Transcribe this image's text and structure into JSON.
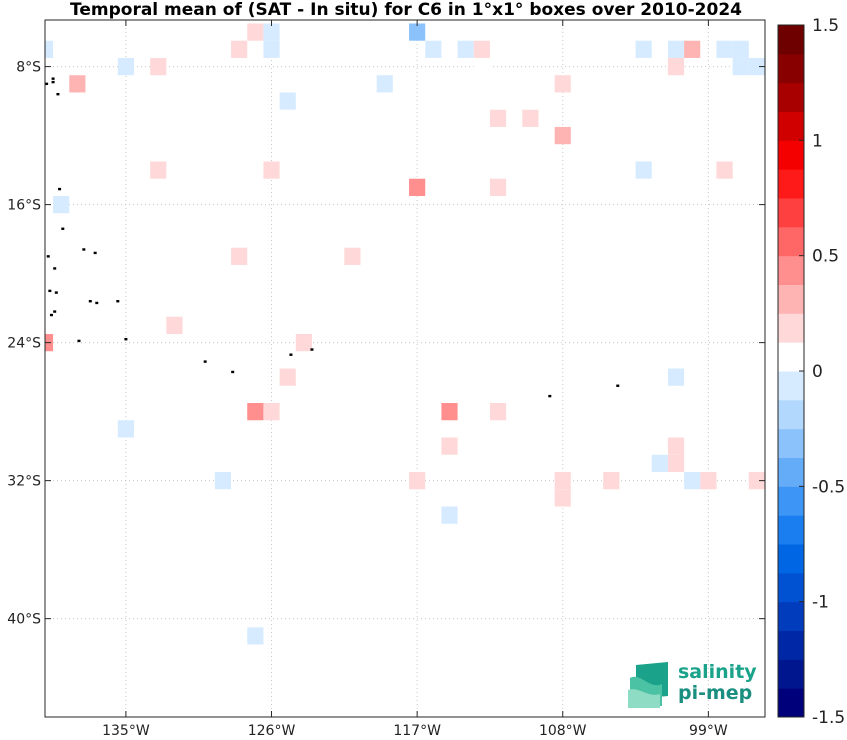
{
  "chart_data": {
    "type": "heatmap",
    "title": "Temporal mean of (SAT - In situ) for C6 in 1°x1° boxes over 2010-2024",
    "xlim": [
      -140,
      -95.5
    ],
    "ylim": [
      -45.7,
      -5.3
    ],
    "x_ticks": [
      {
        "value": -135,
        "label": "135°W"
      },
      {
        "value": -126,
        "label": "126°W"
      },
      {
        "value": -117,
        "label": "117°W"
      },
      {
        "value": -108,
        "label": "108°W"
      },
      {
        "value": -99,
        "label": "99°W"
      }
    ],
    "y_ticks": [
      {
        "value": -8,
        "label": "8°S"
      },
      {
        "value": -16,
        "label": "16°S"
      },
      {
        "value": -24,
        "label": "24°S"
      },
      {
        "value": -32,
        "label": "32°S"
      },
      {
        "value": -40,
        "label": "40°S"
      }
    ],
    "grid": true,
    "colorbar": {
      "range": [
        -1.5,
        1.5
      ],
      "n_levels": 20,
      "ticks": [
        {
          "value": 1.5,
          "label": "1.5"
        },
        {
          "value": 1,
          "label": "1"
        },
        {
          "value": 0.5,
          "label": "0.5"
        },
        {
          "value": 0,
          "label": "0"
        },
        {
          "value": -0.5,
          "label": "-0.5"
        },
        {
          "value": -1,
          "label": "-1"
        },
        {
          "value": -1.5,
          "label": "-1.5"
        }
      ],
      "colors": [
        "#00007a",
        "#00168f",
        "#0028a6",
        "#003cbc",
        "#0052d2",
        "#0066e3",
        "#1a7ef0",
        "#3d95f5",
        "#64abf8",
        "#8cc2fb",
        "#b3d8fd",
        "#d6ebff",
        "#ffffff",
        "#ffd9d9",
        "#ffb4b4",
        "#ff8e8e",
        "#ff6666",
        "#ff4040",
        "#ff1a1a",
        "#f50000",
        "#d00000",
        "#a80000",
        "#880000",
        "#6e0000"
      ]
    },
    "cells": [
      {
        "lon": -140,
        "lat": -7,
        "v": -0.12
      },
      {
        "lon": -135,
        "lat": -8,
        "v": -0.12
      },
      {
        "lon": -138,
        "lat": -9,
        "v": 0.32
      },
      {
        "lon": -133,
        "lat": -8,
        "v": 0.15
      },
      {
        "lon": -128,
        "lat": -7,
        "v": 0.15
      },
      {
        "lon": -127,
        "lat": -6,
        "v": 0.2
      },
      {
        "lon": -126,
        "lat": -6,
        "v": -0.12
      },
      {
        "lon": -126,
        "lat": -7,
        "v": -0.12
      },
      {
        "lon": -125,
        "lat": -10,
        "v": -0.12
      },
      {
        "lon": -119,
        "lat": -9,
        "v": -0.12
      },
      {
        "lon": -117,
        "lat": -6,
        "v": -0.3
      },
      {
        "lon": -116,
        "lat": -7,
        "v": -0.12
      },
      {
        "lon": -114,
        "lat": -7,
        "v": -0.12
      },
      {
        "lon": -113,
        "lat": -7,
        "v": 0.15
      },
      {
        "lon": -114,
        "lat": -9,
        "v": 0.12
      },
      {
        "lon": -113,
        "lat": -9,
        "v": 0.12
      },
      {
        "lon": -113,
        "lat": -8,
        "v": 0.12
      },
      {
        "lon": -112,
        "lat": -11,
        "v": 0.2
      },
      {
        "lon": -110,
        "lat": -11,
        "v": 0.2
      },
      {
        "lon": -108,
        "lat": -9,
        "v": 0.15
      },
      {
        "lon": -108,
        "lat": -12,
        "v": 0.32
      },
      {
        "lon": -103,
        "lat": -7,
        "v": -0.12
      },
      {
        "lon": -101,
        "lat": -7,
        "v": -0.12
      },
      {
        "lon": -101,
        "lat": -8,
        "v": 0.15
      },
      {
        "lon": -100,
        "lat": -7,
        "v": 0.3
      },
      {
        "lon": -98,
        "lat": -7,
        "v": -0.12
      },
      {
        "lon": -97,
        "lat": -7,
        "v": -0.12
      },
      {
        "lon": -97,
        "lat": -8,
        "v": -0.12
      },
      {
        "lon": -96,
        "lat": -8,
        "v": -0.12
      },
      {
        "lon": -133,
        "lat": -14,
        "v": 0.15
      },
      {
        "lon": -126,
        "lat": -14,
        "v": 0.15
      },
      {
        "lon": -117,
        "lat": -15,
        "v": 0.38
      },
      {
        "lon": -112,
        "lat": -15,
        "v": 0.15
      },
      {
        "lon": -103,
        "lat": -14,
        "v": -0.12
      },
      {
        "lon": -98,
        "lat": -14,
        "v": 0.15
      },
      {
        "lon": -139,
        "lat": -16,
        "v": -0.12
      },
      {
        "lon": -128,
        "lat": -19,
        "v": 0.15
      },
      {
        "lon": -121,
        "lat": -19,
        "v": 0.2
      },
      {
        "lon": -140,
        "lat": -24,
        "v": 0.45
      },
      {
        "lon": -132,
        "lat": -23,
        "v": 0.15
      },
      {
        "lon": -124,
        "lat": -24,
        "v": 0.15
      },
      {
        "lon": -127,
        "lat": -28,
        "v": 0.38
      },
      {
        "lon": -126,
        "lat": -28,
        "v": 0.15
      },
      {
        "lon": -125,
        "lat": -26,
        "v": 0.2
      },
      {
        "lon": -135,
        "lat": -29,
        "v": -0.12
      },
      {
        "lon": -129,
        "lat": -32,
        "v": -0.12
      },
      {
        "lon": -115,
        "lat": -28,
        "v": 0.45
      },
      {
        "lon": -112,
        "lat": -28,
        "v": 0.15
      },
      {
        "lon": -115,
        "lat": -30,
        "v": 0.15
      },
      {
        "lon": -117,
        "lat": -32,
        "v": 0.15
      },
      {
        "lon": -108,
        "lat": -32,
        "v": 0.15
      },
      {
        "lon": -108,
        "lat": -33,
        "v": 0.2
      },
      {
        "lon": -105,
        "lat": -32,
        "v": 0.15
      },
      {
        "lon": -102,
        "lat": -31,
        "v": -0.12
      },
      {
        "lon": -101,
        "lat": -26,
        "v": -0.12
      },
      {
        "lon": -101,
        "lat": -30,
        "v": 0.15
      },
      {
        "lon": -101,
        "lat": -31,
        "v": 0.15
      },
      {
        "lon": -100,
        "lat": -32,
        "v": -0.12
      },
      {
        "lon": -99,
        "lat": -32,
        "v": 0.15
      },
      {
        "lon": -96,
        "lat": -32,
        "v": 0.15
      },
      {
        "lon": -115,
        "lat": -34,
        "v": -0.12
      },
      {
        "lon": -127,
        "lat": -41,
        "v": -0.12
      }
    ],
    "islands": [
      {
        "lon": -139.5,
        "lat": -8.9
      },
      {
        "lon": -139.9,
        "lat": -9.0
      },
      {
        "lon": -139.2,
        "lat": -9.6
      },
      {
        "lon": -139.5,
        "lat": -8.7
      },
      {
        "lon": -139.1,
        "lat": -15.1
      },
      {
        "lon": -138.9,
        "lat": -17.4
      },
      {
        "lon": -137.6,
        "lat": -18.6
      },
      {
        "lon": -136.9,
        "lat": -18.8
      },
      {
        "lon": -139.8,
        "lat": -19.0
      },
      {
        "lon": -139.4,
        "lat": -19.7
      },
      {
        "lon": -139.7,
        "lat": -21.0
      },
      {
        "lon": -139.3,
        "lat": -21.1
      },
      {
        "lon": -137.2,
        "lat": -21.6
      },
      {
        "lon": -136.8,
        "lat": -21.7
      },
      {
        "lon": -135.5,
        "lat": -21.6
      },
      {
        "lon": -139.4,
        "lat": -22.2
      },
      {
        "lon": -139.6,
        "lat": -22.4
      },
      {
        "lon": -137.9,
        "lat": -23.9
      },
      {
        "lon": -135.0,
        "lat": -23.8
      },
      {
        "lon": -130.1,
        "lat": -25.1
      },
      {
        "lon": -124.8,
        "lat": -24.7
      },
      {
        "lon": -128.4,
        "lat": -25.7
      },
      {
        "lon": -123.5,
        "lat": -24.4
      },
      {
        "lon": -108.8,
        "lat": -27.1
      },
      {
        "lon": -104.6,
        "lat": -26.5
      }
    ]
  },
  "logo": {
    "line1": "salinity",
    "line2": "pi-mep"
  }
}
